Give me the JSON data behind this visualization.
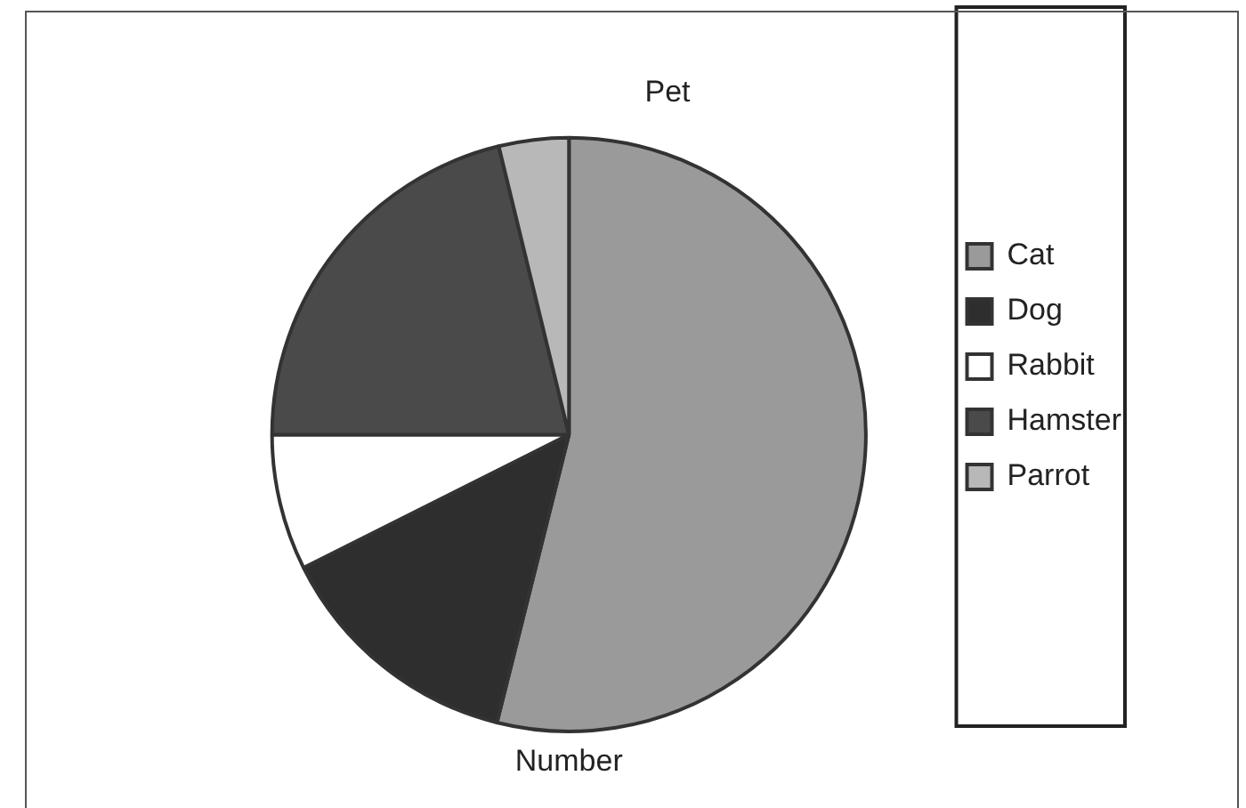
{
  "chart_data": {
    "type": "pie",
    "title": "Pet",
    "xlabel": "Number",
    "categories": [
      "Cat",
      "Dog",
      "Rabbit",
      "Hamster",
      "Parrot"
    ],
    "values": [
      53.9,
      13.7,
      7.4,
      21.2,
      3.8
    ],
    "colors": [
      "#9a9a9a",
      "#2e2e2e",
      "#ffffff",
      "#4a4a4a",
      "#b8b8b8"
    ],
    "legend": "right"
  }
}
